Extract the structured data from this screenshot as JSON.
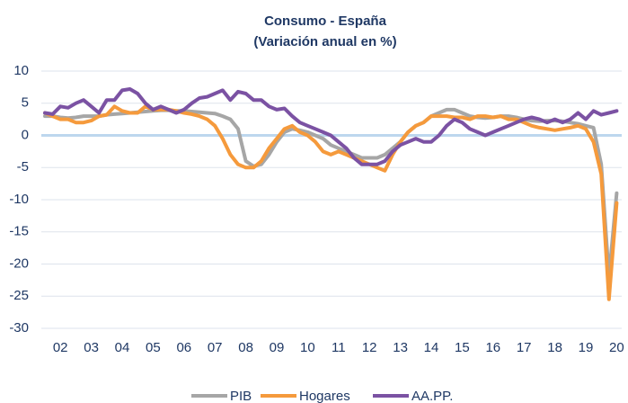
{
  "chart_data": {
    "type": "line",
    "title": "Consumo - España",
    "subtitle": "(Variación anual en %)",
    "categories": [
      null,
      null,
      "02",
      null,
      null,
      null,
      "03",
      null,
      null,
      null,
      "04",
      null,
      null,
      null,
      "05",
      null,
      null,
      null,
      "06",
      null,
      null,
      null,
      "07",
      null,
      null,
      null,
      "08",
      null,
      null,
      null,
      "09",
      null,
      null,
      null,
      "10",
      null,
      null,
      null,
      "11",
      null,
      null,
      null,
      "12",
      null,
      null,
      null,
      "13",
      null,
      null,
      null,
      "14",
      null,
      null,
      null,
      "15",
      null,
      null,
      null,
      "16",
      null,
      null,
      null,
      "17",
      null,
      null,
      null,
      "18",
      null,
      null,
      null,
      "19",
      null,
      null,
      null,
      "20"
    ],
    "series": [
      {
        "name": "PIB",
        "color": "#a6a6a6",
        "values": [
          3,
          3,
          2.8,
          2.7,
          2.8,
          3,
          3,
          3,
          3.2,
          3.3,
          3.4,
          3.5,
          3.6,
          3.7,
          3.8,
          3.9,
          3.9,
          3.8,
          3.8,
          3.7,
          3.6,
          3.5,
          3.4,
          3,
          2.5,
          1,
          -4,
          -4.8,
          -4.5,
          -3,
          -1,
          0.5,
          1,
          0.8,
          0.5,
          0,
          -0.5,
          -1.5,
          -2,
          -2.5,
          -3,
          -3.5,
          -3.5,
          -3.5,
          -3,
          -2,
          -1,
          0.5,
          1.5,
          2,
          3,
          3.5,
          4,
          4,
          3.5,
          3,
          2.8,
          2.7,
          2.8,
          3,
          3,
          2.8,
          2.5,
          2.3,
          2.2,
          2.3,
          2.3,
          2.2,
          2,
          1.8,
          1.5,
          1.2,
          -4.5,
          -22,
          -9
        ]
      },
      {
        "name": "Hogares",
        "color": "#f59a3c",
        "values": [
          3.5,
          3,
          2.5,
          2.5,
          2,
          2,
          2.3,
          3,
          3.2,
          4.5,
          3.8,
          3.5,
          3.5,
          4.5,
          4,
          4,
          4,
          3.8,
          3.5,
          3.3,
          3,
          2.5,
          1.5,
          -0.5,
          -3,
          -4.5,
          -5,
          -5,
          -4,
          -2,
          -0.5,
          1,
          1.5,
          0.5,
          0,
          -1,
          -2.5,
          -3,
          -2.5,
          -3,
          -3.5,
          -4,
          -4.5,
          -5,
          -5.5,
          -3,
          -1,
          0.5,
          1.5,
          2,
          3,
          3,
          3,
          2.8,
          2.8,
          2.5,
          3,
          3,
          2.8,
          3,
          2.5,
          2.5,
          2,
          1.5,
          1.2,
          1,
          0.8,
          1,
          1.2,
          1.5,
          1,
          -1,
          -6,
          -25.5,
          -10.5
        ]
      },
      {
        "name": "AA.PP.",
        "color": "#7b52a3",
        "values": [
          3.5,
          3.3,
          4.5,
          4.3,
          5,
          5.5,
          4.5,
          3.5,
          5.5,
          5.5,
          7,
          7.2,
          6.5,
          5,
          4,
          4.5,
          4,
          3.5,
          4,
          5,
          5.8,
          6,
          6.5,
          7,
          5.5,
          6.8,
          6.5,
          5.5,
          5.5,
          4.5,
          4,
          4.2,
          3,
          2,
          1.5,
          1,
          0.5,
          0,
          -1,
          -2,
          -3.5,
          -4.5,
          -4.5,
          -4.5,
          -4,
          -2.5,
          -1.5,
          -1,
          -0.5,
          -1,
          -1,
          0,
          1.5,
          2.5,
          2,
          1,
          0.5,
          0,
          0.5,
          1,
          1.5,
          2,
          2.5,
          2.8,
          2.5,
          2,
          2.5,
          2,
          2.5,
          3.5,
          2.5,
          3.8,
          3.2,
          3.5,
          3.8
        ]
      }
    ],
    "ylim": [
      -30,
      10
    ],
    "yticks": [
      10,
      5,
      0,
      -5,
      -10,
      -15,
      -20,
      -25,
      -30
    ],
    "grid": true,
    "legend": "bottom"
  }
}
